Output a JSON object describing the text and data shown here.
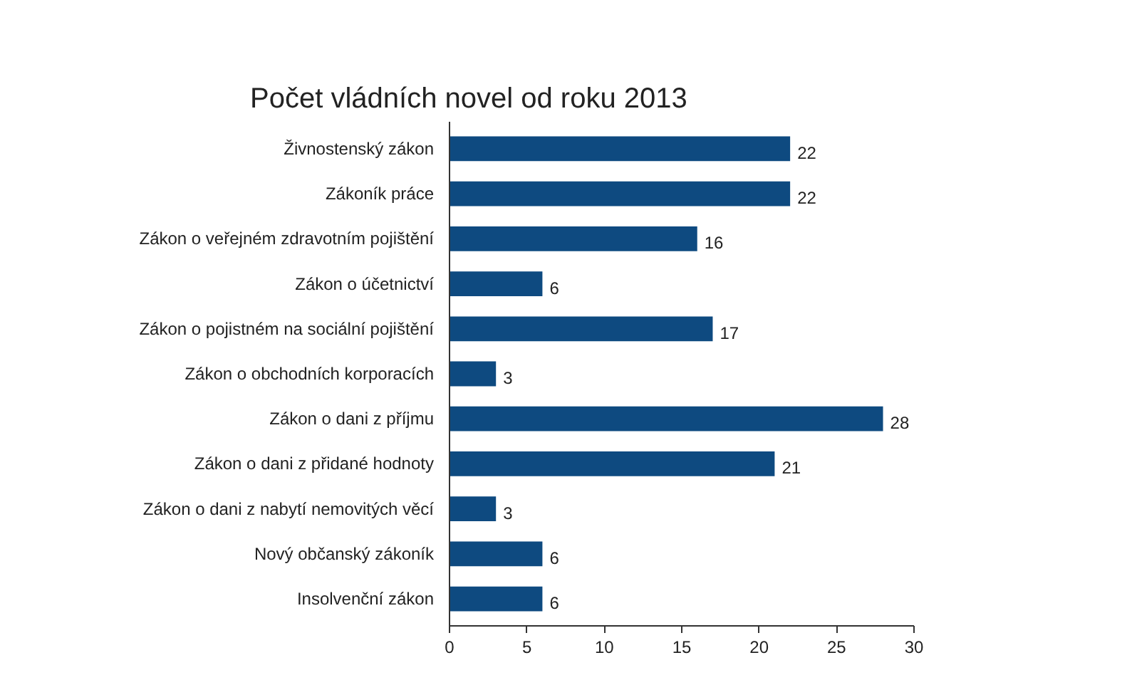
{
  "chart_data": {
    "type": "bar",
    "orientation": "horizontal",
    "title": "Počet vládních novel od roku 2013",
    "categories": [
      "Živnostenský zákon",
      "Zákoník práce",
      "Zákon o veřejném zdravotním pojištění",
      "Zákon o účetnictví",
      "Zákon o pojistném na sociální pojištění",
      "Zákon o obchodních korporacích",
      "Zákon o dani z příjmu",
      "Zákon o dani z přidané hodnoty",
      "Zákon o dani z nabytí nemovitých věcí",
      "Nový občanský zákoník",
      "Insolvenční zákon"
    ],
    "values": [
      22,
      22,
      16,
      6,
      17,
      3,
      28,
      21,
      3,
      6,
      6
    ],
    "color": "#0e4a80",
    "xlim": [
      0,
      30
    ],
    "xticks": [
      0,
      5,
      10,
      15,
      20,
      25,
      30
    ],
    "data_labels": true,
    "grid": false
  }
}
